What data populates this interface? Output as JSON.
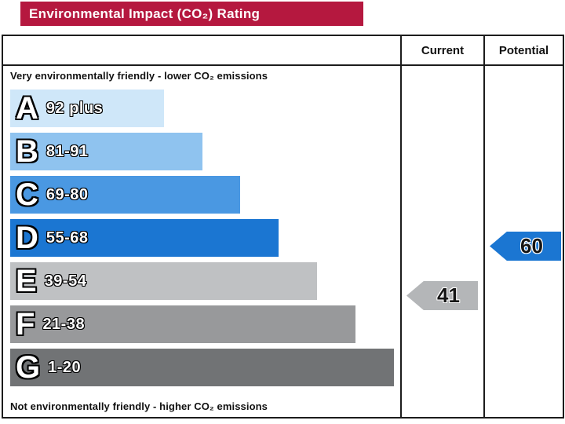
{
  "title": "Environmental Impact (CO₂) Rating",
  "table": {
    "current_header": "Current",
    "potential_header": "Potential"
  },
  "notes": {
    "top": "Very environmentally friendly - lower CO₂ emissions",
    "bottom": "Not environmentally friendly - higher CO₂ emissions"
  },
  "chart_data": {
    "type": "bar",
    "title": "Environmental Impact (CO₂) Rating",
    "header_color": "#b5183f",
    "bands": [
      {
        "letter": "A",
        "range": "92 plus",
        "color": "#cfe7f9",
        "width_pct": 40
      },
      {
        "letter": "B",
        "range": "81-91",
        "color": "#8fc3ef",
        "width_pct": 50
      },
      {
        "letter": "C",
        "range": "69-80",
        "color": "#4a98e2",
        "width_pct": 60
      },
      {
        "letter": "D",
        "range": "55-68",
        "color": "#1b76d2",
        "width_pct": 70
      },
      {
        "letter": "E",
        "range": "39-54",
        "color": "#bfc1c3",
        "width_pct": 80
      },
      {
        "letter": "F",
        "range": "21-38",
        "color": "#98999b",
        "width_pct": 90
      },
      {
        "letter": "G",
        "range": "1-20",
        "color": "#717375",
        "width_pct": 100
      }
    ],
    "current": {
      "value": "41",
      "band": "E",
      "arrow_color": "#b4b6b8"
    },
    "potential": {
      "value": "60",
      "band": "D",
      "arrow_color": "#1b76d2"
    }
  }
}
